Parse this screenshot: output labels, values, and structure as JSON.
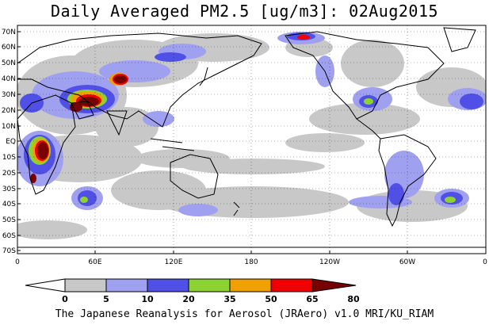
{
  "title": "Daily Averaged PM2.5 [ug/m3]: 02Aug2015",
  "footer": "The Japanese Reanalysis for Aerosol (JRAero) v1.0 MRI/KU_RIAM",
  "lat_labels": [
    "70N",
    "60N",
    "50N",
    "40N",
    "30N",
    "20N",
    "10N",
    "EQ",
    "10S",
    "20S",
    "30S",
    "40S",
    "50S",
    "60S",
    "70S"
  ],
  "lon_labels": [
    "0",
    "60E",
    "120E",
    "180",
    "120W",
    "60W",
    "0"
  ],
  "colorbar": {
    "levels": [
      "0",
      "5",
      "10",
      "20",
      "35",
      "50",
      "65",
      "80"
    ],
    "colors": [
      "#ffffff",
      "#c8c8c8",
      "#a0a0f0",
      "#5050e6",
      "#8cd232",
      "#f0a000",
      "#f00000",
      "#780000"
    ]
  }
}
